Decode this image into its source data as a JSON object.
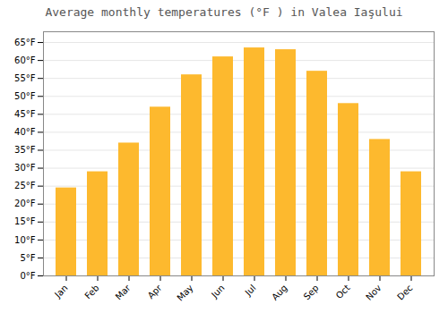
{
  "chart_data": {
    "type": "bar",
    "title": "Average monthly temperatures (°F ) in Valea Iaşului",
    "categories": [
      "Jan",
      "Feb",
      "Mar",
      "Apr",
      "May",
      "Jun",
      "Jul",
      "Aug",
      "Sep",
      "Oct",
      "Nov",
      "Dec"
    ],
    "values": [
      24.5,
      29.0,
      37.0,
      47.0,
      56.0,
      61.0,
      63.5,
      63.0,
      57.0,
      48.0,
      38.0,
      29.0
    ],
    "color": "#FDB92E",
    "ylim": [
      0,
      68
    ],
    "yticks": [
      {
        "value": 0,
        "label": "0°F"
      },
      {
        "value": 5,
        "label": "5°F"
      },
      {
        "value": 10,
        "label": "10°F"
      },
      {
        "value": 15,
        "label": "15°F"
      },
      {
        "value": 20,
        "label": "20°F"
      },
      {
        "value": 25,
        "label": "25°F"
      },
      {
        "value": 30,
        "label": "30°F"
      },
      {
        "value": 35,
        "label": "35°F"
      },
      {
        "value": 40,
        "label": "40°F"
      },
      {
        "value": 45,
        "label": "45°F"
      },
      {
        "value": 50,
        "label": "50°F"
      },
      {
        "value": 55,
        "label": "55°F"
      },
      {
        "value": 60,
        "label": "60°F"
      },
      {
        "value": 65,
        "label": "65°F"
      }
    ],
    "grid": true
  }
}
